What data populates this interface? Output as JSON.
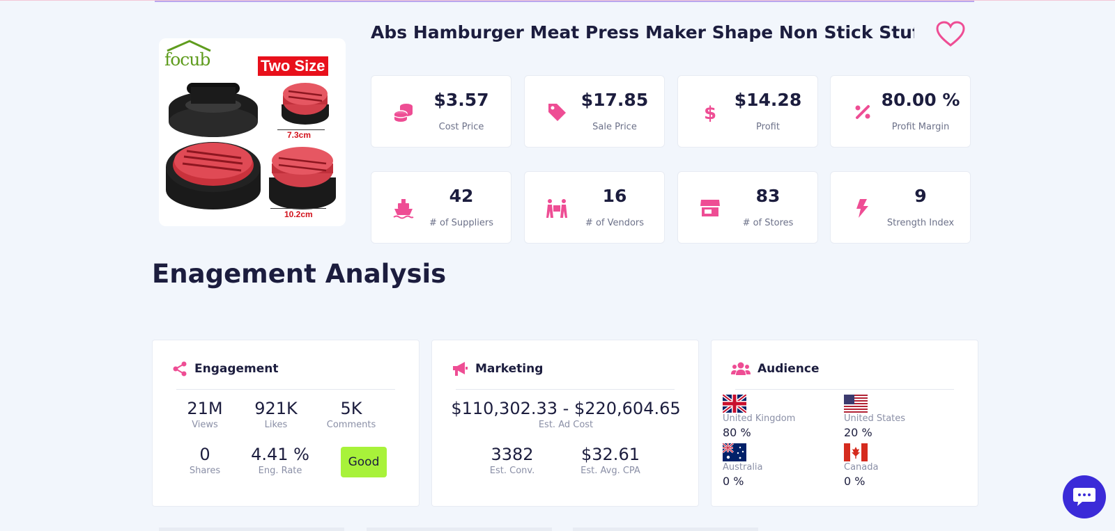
{
  "product": {
    "title": "Abs Hamburger Meat Press Maker Shape Non Stick Stuff...",
    "image": {
      "brand": "focub",
      "badge": "Two Size",
      "small_size": "7.3cm",
      "large_size": "10.2cm"
    }
  },
  "stats": [
    {
      "icon": "coins-icon",
      "value": "$3.57",
      "label": "Cost Price"
    },
    {
      "icon": "tag-icon",
      "value": "$17.85",
      "label": "Sale Price"
    },
    {
      "icon": "dollar-icon",
      "value": "$14.28",
      "label": "Profit"
    },
    {
      "icon": "percent-icon",
      "value": "80.00 %",
      "label": "Profit Margin"
    },
    {
      "icon": "ship-icon",
      "value": "42",
      "label": "# of Suppliers"
    },
    {
      "icon": "people-carry-icon",
      "value": "16",
      "label": "# of Vendors"
    },
    {
      "icon": "store-icon",
      "value": "83",
      "label": "# of Stores"
    },
    {
      "icon": "bolt-icon",
      "value": "9",
      "label": "Strength Index"
    }
  ],
  "section_title": "Enagement Analysis",
  "engagement": {
    "title": "Engagement",
    "views": {
      "value": "21M",
      "label": "Views"
    },
    "likes": {
      "value": "921K",
      "label": "Likes"
    },
    "comments": {
      "value": "5K",
      "label": "Comments"
    },
    "shares": {
      "value": "0",
      "label": "Shares"
    },
    "eng_rate": {
      "value": "4.41 %",
      "label": "Eng. Rate"
    },
    "rating": "Good"
  },
  "marketing": {
    "title": "Marketing",
    "ad_cost": {
      "value": "$110,302.33 - $220,604.65",
      "label": "Est. Ad Cost"
    },
    "conv": {
      "value": "3382",
      "label": "Est. Conv."
    },
    "cpa": {
      "value": "$32.61",
      "label": "Est. Avg. CPA"
    }
  },
  "audience": {
    "title": "Audience",
    "countries": [
      {
        "name": "United Kingdom",
        "pct": "80 %",
        "flag": "uk-flag"
      },
      {
        "name": "United States",
        "pct": "20 %",
        "flag": "us-flag"
      },
      {
        "name": "Australia",
        "pct": "0 %",
        "flag": "au-flag"
      },
      {
        "name": "Canada",
        "pct": "0 %",
        "flag": "ca-flag"
      }
    ]
  },
  "colors": {
    "accent": "#ee4d94",
    "text": "#1c1d3e",
    "muted": "#6c7189",
    "good": "#a8f23a",
    "chat": "#3b2bd8"
  }
}
